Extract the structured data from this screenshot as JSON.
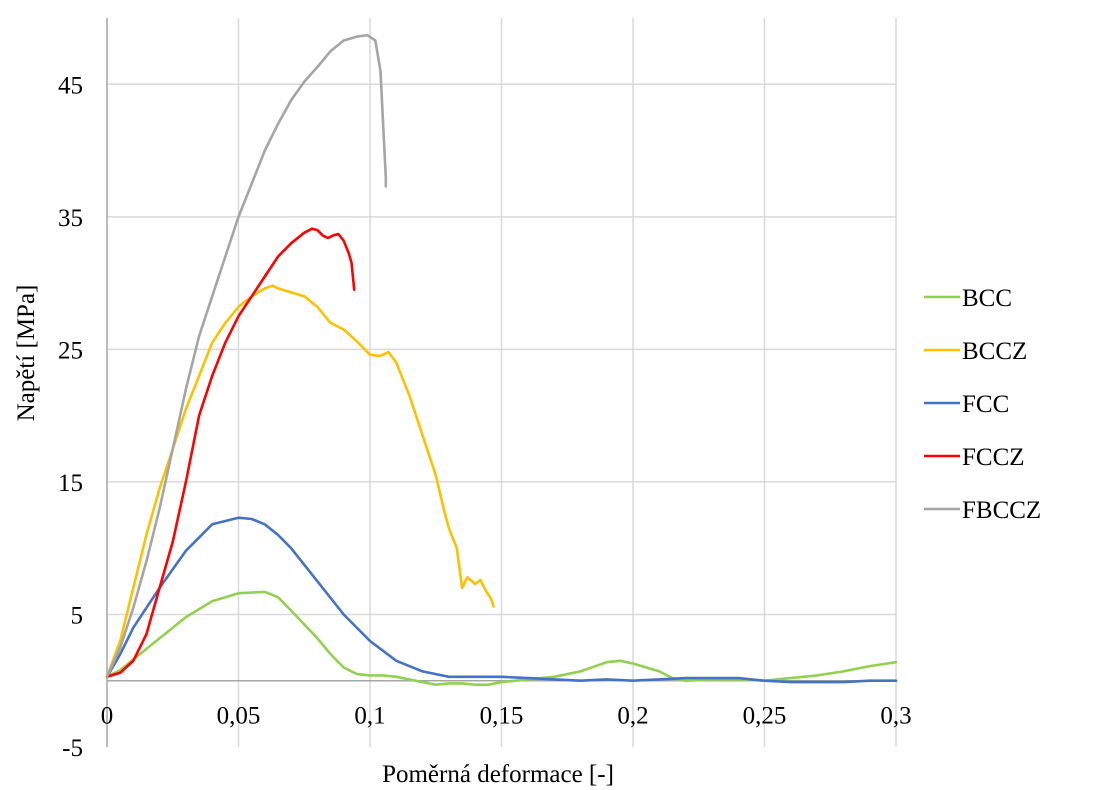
{
  "chart_data": {
    "type": "line",
    "title": "",
    "xlabel": "Poměrná deformace [-]",
    "ylabel": "Napětí [MPa]",
    "xlim": [
      0,
      0.3
    ],
    "ylim": [
      -5,
      50
    ],
    "x_ticks": [
      0,
      0.05,
      0.1,
      0.15,
      0.2,
      0.25,
      0.3
    ],
    "x_tick_labels": [
      "0",
      "0,05",
      "0,1",
      "0,15",
      "0,2",
      "0,25",
      "0,3"
    ],
    "y_ticks": [
      -5,
      5,
      15,
      25,
      35,
      45
    ],
    "y_tick_labels": [
      "-5",
      "5",
      "15",
      "25",
      "35",
      "45"
    ],
    "grid": true,
    "legend_position": "right",
    "series": [
      {
        "name": "BCC",
        "color": "#92d050",
        "points": [
          [
            0,
            0.3
          ],
          [
            0.005,
            0.8
          ],
          [
            0.01,
            1.6
          ],
          [
            0.02,
            3.2
          ],
          [
            0.03,
            4.8
          ],
          [
            0.04,
            6.0
          ],
          [
            0.05,
            6.6
          ],
          [
            0.06,
            6.7
          ],
          [
            0.065,
            6.3
          ],
          [
            0.07,
            5.3
          ],
          [
            0.08,
            3.2
          ],
          [
            0.085,
            2.0
          ],
          [
            0.09,
            1.0
          ],
          [
            0.095,
            0.5
          ],
          [
            0.1,
            0.4
          ],
          [
            0.105,
            0.4
          ],
          [
            0.11,
            0.3
          ],
          [
            0.12,
            -0.1
          ],
          [
            0.125,
            -0.3
          ],
          [
            0.13,
            -0.2
          ],
          [
            0.135,
            -0.2
          ],
          [
            0.14,
            -0.3
          ],
          [
            0.145,
            -0.3
          ],
          [
            0.15,
            -0.1
          ],
          [
            0.16,
            0.1
          ],
          [
            0.17,
            0.3
          ],
          [
            0.18,
            0.7
          ],
          [
            0.19,
            1.4
          ],
          [
            0.195,
            1.5
          ],
          [
            0.2,
            1.3
          ],
          [
            0.21,
            0.7
          ],
          [
            0.215,
            0.2
          ],
          [
            0.22,
            0.0
          ],
          [
            0.23,
            0.1
          ],
          [
            0.24,
            0.1
          ],
          [
            0.25,
            0.0
          ],
          [
            0.26,
            0.2
          ],
          [
            0.27,
            0.4
          ],
          [
            0.28,
            0.7
          ],
          [
            0.29,
            1.1
          ],
          [
            0.3,
            1.4
          ]
        ]
      },
      {
        "name": "BCCZ",
        "color": "#ffc000",
        "points": [
          [
            0,
            0.3
          ],
          [
            0.005,
            3.0
          ],
          [
            0.01,
            7.0
          ],
          [
            0.015,
            11.0
          ],
          [
            0.02,
            14.5
          ],
          [
            0.025,
            17.5
          ],
          [
            0.03,
            20.5
          ],
          [
            0.035,
            23.0
          ],
          [
            0.04,
            25.5
          ],
          [
            0.045,
            27.0
          ],
          [
            0.05,
            28.2
          ],
          [
            0.055,
            29.0
          ],
          [
            0.06,
            29.6
          ],
          [
            0.063,
            29.8
          ],
          [
            0.065,
            29.6
          ],
          [
            0.07,
            29.3
          ],
          [
            0.075,
            29.0
          ],
          [
            0.08,
            28.2
          ],
          [
            0.085,
            27.0
          ],
          [
            0.09,
            26.5
          ],
          [
            0.095,
            25.6
          ],
          [
            0.1,
            24.6
          ],
          [
            0.104,
            24.5
          ],
          [
            0.107,
            24.8
          ],
          [
            0.11,
            24.0
          ],
          [
            0.115,
            21.5
          ],
          [
            0.12,
            18.5
          ],
          [
            0.125,
            15.5
          ],
          [
            0.128,
            13.0
          ],
          [
            0.13,
            11.5
          ],
          [
            0.133,
            10.0
          ],
          [
            0.135,
            7.0
          ],
          [
            0.137,
            7.8
          ],
          [
            0.14,
            7.3
          ],
          [
            0.142,
            7.6
          ],
          [
            0.144,
            6.8
          ],
          [
            0.146,
            6.2
          ],
          [
            0.147,
            5.6
          ]
        ]
      },
      {
        "name": "FCC",
        "color": "#4472c4",
        "points": [
          [
            0,
            0.3
          ],
          [
            0.005,
            2.0
          ],
          [
            0.01,
            4.0
          ],
          [
            0.02,
            7.0
          ],
          [
            0.03,
            9.8
          ],
          [
            0.04,
            11.8
          ],
          [
            0.05,
            12.3
          ],
          [
            0.055,
            12.2
          ],
          [
            0.06,
            11.8
          ],
          [
            0.065,
            11.0
          ],
          [
            0.07,
            10.0
          ],
          [
            0.08,
            7.5
          ],
          [
            0.09,
            5.0
          ],
          [
            0.1,
            3.0
          ],
          [
            0.11,
            1.5
          ],
          [
            0.12,
            0.7
          ],
          [
            0.13,
            0.3
          ],
          [
            0.14,
            0.3
          ],
          [
            0.15,
            0.3
          ],
          [
            0.16,
            0.2
          ],
          [
            0.17,
            0.1
          ],
          [
            0.18,
            0.0
          ],
          [
            0.19,
            0.1
          ],
          [
            0.2,
            0.0
          ],
          [
            0.21,
            0.1
          ],
          [
            0.22,
            0.2
          ],
          [
            0.23,
            0.2
          ],
          [
            0.24,
            0.2
          ],
          [
            0.25,
            0.0
          ],
          [
            0.26,
            -0.1
          ],
          [
            0.27,
            -0.1
          ],
          [
            0.28,
            -0.1
          ],
          [
            0.29,
            0.0
          ],
          [
            0.3,
            0.0
          ]
        ]
      },
      {
        "name": "FCCZ",
        "color": "#ff0000",
        "points": [
          [
            0,
            0.3
          ],
          [
            0.005,
            0.6
          ],
          [
            0.01,
            1.5
          ],
          [
            0.015,
            3.5
          ],
          [
            0.02,
            7.0
          ],
          [
            0.025,
            10.5
          ],
          [
            0.03,
            15.0
          ],
          [
            0.035,
            20.0
          ],
          [
            0.04,
            23.0
          ],
          [
            0.045,
            25.5
          ],
          [
            0.05,
            27.5
          ],
          [
            0.055,
            29.0
          ],
          [
            0.06,
            30.5
          ],
          [
            0.065,
            32.0
          ],
          [
            0.07,
            33.0
          ],
          [
            0.075,
            33.8
          ],
          [
            0.078,
            34.1
          ],
          [
            0.08,
            34.0
          ],
          [
            0.082,
            33.6
          ],
          [
            0.084,
            33.4
          ],
          [
            0.086,
            33.6
          ],
          [
            0.088,
            33.7
          ],
          [
            0.09,
            33.2
          ],
          [
            0.092,
            32.2
          ],
          [
            0.093,
            31.5
          ],
          [
            0.094,
            29.5
          ]
        ]
      },
      {
        "name": "FBCCZ",
        "color": "#a5a5a5",
        "points": [
          [
            0,
            0.3
          ],
          [
            0.005,
            2.5
          ],
          [
            0.01,
            5.5
          ],
          [
            0.015,
            9.0
          ],
          [
            0.02,
            13.0
          ],
          [
            0.025,
            17.5
          ],
          [
            0.03,
            22.0
          ],
          [
            0.035,
            26.0
          ],
          [
            0.04,
            29.0
          ],
          [
            0.045,
            32.0
          ],
          [
            0.05,
            35.0
          ],
          [
            0.055,
            37.5
          ],
          [
            0.06,
            40.0
          ],
          [
            0.065,
            42.0
          ],
          [
            0.07,
            43.8
          ],
          [
            0.075,
            45.2
          ],
          [
            0.08,
            46.3
          ],
          [
            0.085,
            47.5
          ],
          [
            0.09,
            48.3
          ],
          [
            0.095,
            48.6
          ],
          [
            0.099,
            48.7
          ],
          [
            0.102,
            48.3
          ],
          [
            0.104,
            46.0
          ],
          [
            0.105,
            42.0
          ],
          [
            0.106,
            38.0
          ],
          [
            0.106,
            37.3
          ]
        ]
      }
    ]
  }
}
